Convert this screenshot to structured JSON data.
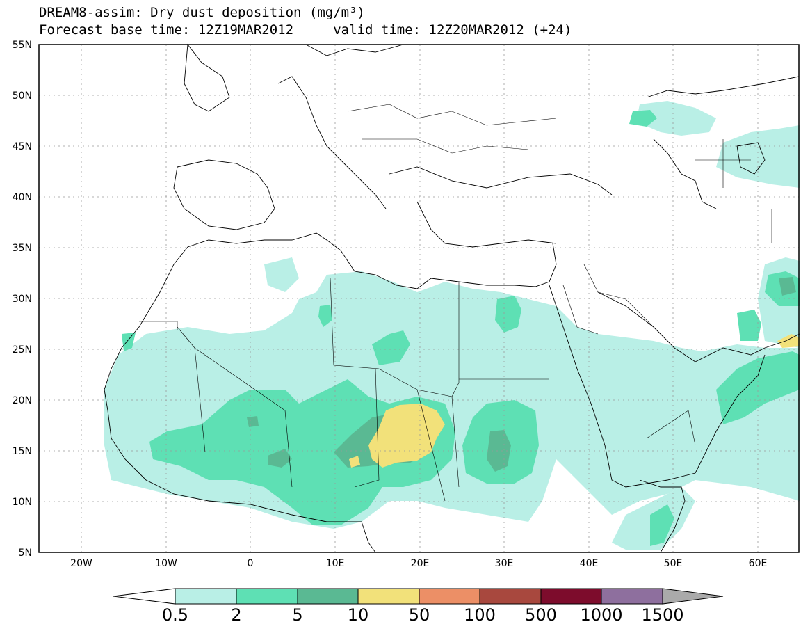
{
  "title": {
    "line1": "DREAM8-assim: Dry dust deposition (mg/m³)",
    "line2": "Forecast base time: 12Z19MAR2012     valid time: 12Z20MAR2012 (+24)"
  },
  "map": {
    "lat_labels": [
      "55N",
      "50N",
      "45N",
      "40N",
      "35N",
      "30N",
      "25N",
      "20N",
      "15N",
      "10N",
      "5N"
    ],
    "lon_labels": [
      "20W",
      "10W",
      "0",
      "10E",
      "20E",
      "30E",
      "40E",
      "50E",
      "60E"
    ]
  },
  "colorbar": {
    "labels": [
      "0.5",
      "2",
      "5",
      "10",
      "50",
      "100",
      "500",
      "1000",
      "1500"
    ],
    "colors": [
      "#b9efe6",
      "#5ee0b4",
      "#5ab993",
      "#f2e17a",
      "#ec8f66",
      "#a8483e",
      "#7d0c2c",
      "#8e6f9e"
    ],
    "under_color": "#ffffff",
    "over_color": "#aaaaaa"
  }
}
